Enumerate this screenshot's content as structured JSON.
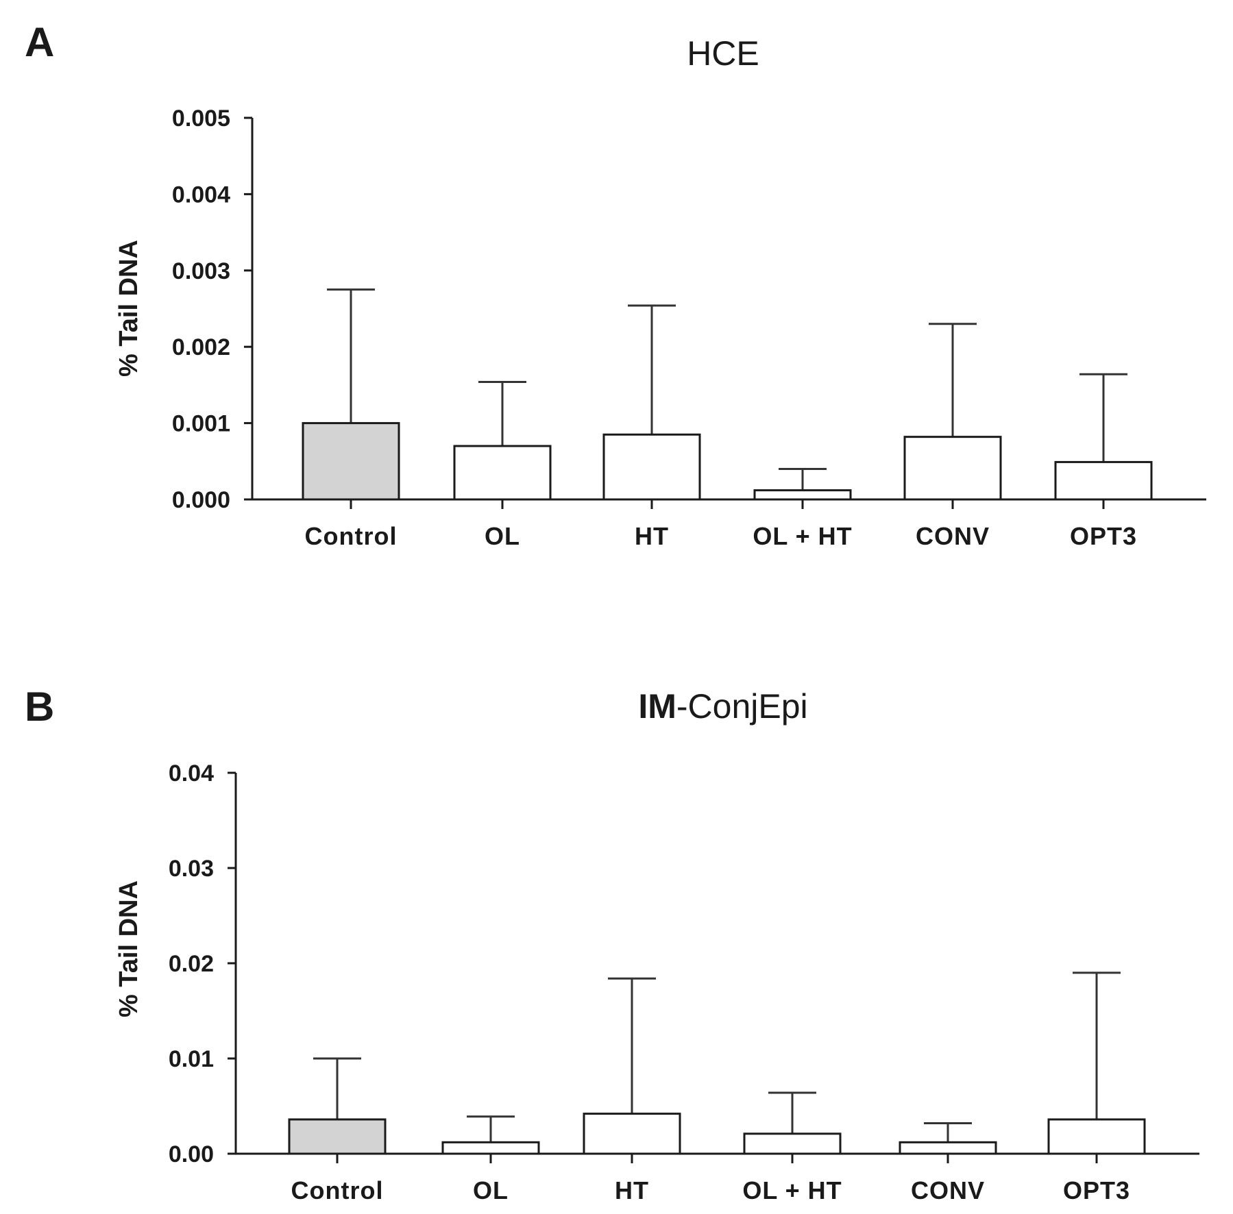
{
  "colors": {
    "control_fill": "#d3d3d3",
    "treatment_fill": "#ffffff",
    "ink": "#1a1a1a"
  },
  "chart_data": [
    {
      "type": "bar",
      "panel": "A",
      "title": "HCE",
      "title_bold_part": "",
      "title_rest": "HCE",
      "xlabel": "",
      "ylabel": "% Tail DNA",
      "categories": [
        "Control",
        "OL",
        "HT",
        "OL + HT",
        "CONV",
        "OPT3"
      ],
      "values": [
        0.001,
        0.0007,
        0.00085,
        0.00012,
        0.00082,
        0.00049
      ],
      "error_upper": [
        0.00275,
        0.00154,
        0.00254,
        0.0004,
        0.0023,
        0.00164
      ],
      "ylim": [
        0,
        0.005
      ],
      "yticks": [
        "0.000",
        "0.001",
        "0.002",
        "0.003",
        "0.004",
        "0.005"
      ],
      "ytick_values": [
        0,
        0.001,
        0.002,
        0.003,
        0.004,
        0.005
      ],
      "grid": false
    },
    {
      "type": "bar",
      "panel": "B",
      "title": "IM-ConjEpi",
      "title_bold_part": "IM",
      "title_rest": "-ConjEpi",
      "xlabel": "",
      "ylabel": "% Tail DNA",
      "categories": [
        "Control",
        "OL",
        "HT",
        "OL + HT",
        "CONV",
        "OPT3"
      ],
      "values": [
        0.0036,
        0.0012,
        0.0042,
        0.0021,
        0.0012,
        0.0036
      ],
      "error_upper": [
        0.01,
        0.0039,
        0.0184,
        0.0064,
        0.0032,
        0.019
      ],
      "ylim": [
        0,
        0.04
      ],
      "yticks": [
        "0.00",
        "0.01",
        "0.02",
        "0.03",
        "0.04"
      ],
      "ytick_values": [
        0,
        0.01,
        0.02,
        0.03,
        0.04
      ],
      "grid": false
    }
  ]
}
